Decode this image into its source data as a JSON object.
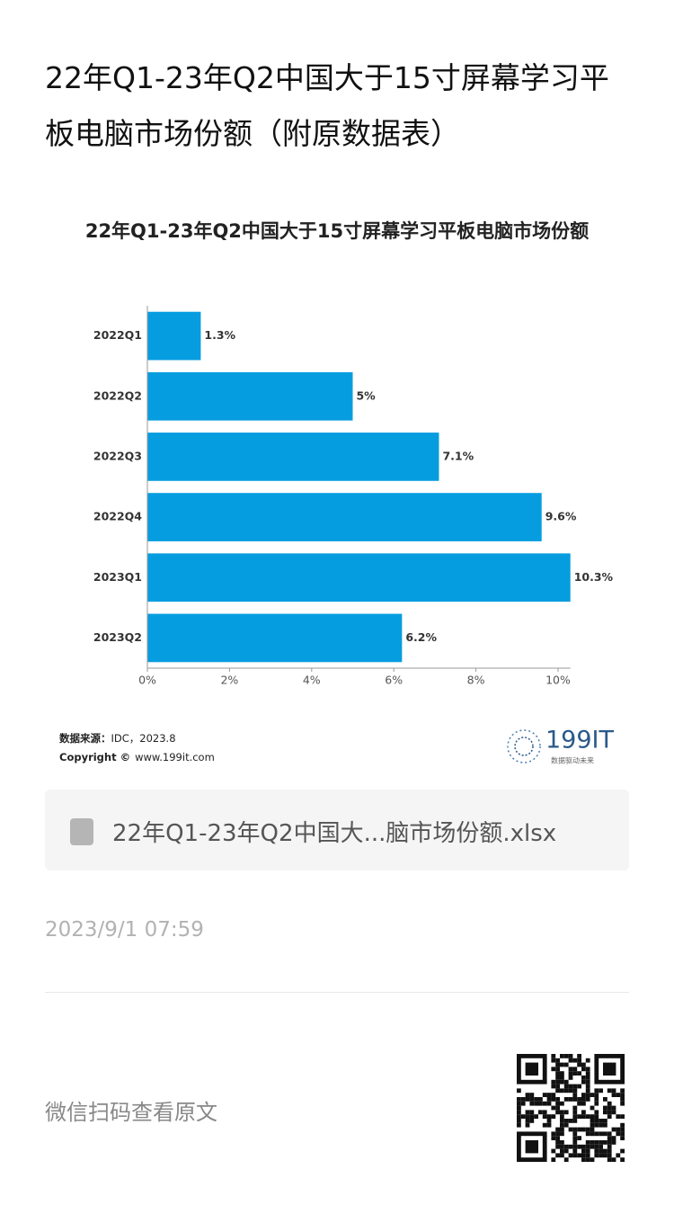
{
  "header": {
    "title": "22年Q1-23年Q2中国大于15寸屏幕学习平板电脑市场份额（附原数据表）"
  },
  "chart_data": {
    "type": "bar",
    "orientation": "horizontal",
    "title": "22年Q1-23年Q2中国大于15寸屏幕学习平板电脑市场份额",
    "categories": [
      "2022Q1",
      "2022Q2",
      "2022Q3",
      "2022Q4",
      "2023Q1",
      "2023Q2"
    ],
    "values": [
      1.3,
      5,
      7.1,
      9.6,
      10.3,
      6.2
    ],
    "value_labels": [
      "1.3%",
      "5%",
      "7.1%",
      "9.6%",
      "10.3%",
      "6.2%"
    ],
    "color": "#069de0",
    "xlim": [
      0,
      10.3
    ],
    "xticks": [
      {
        "value": 0,
        "label": "0%"
      },
      {
        "value": 2,
        "label": "2%"
      },
      {
        "value": 4,
        "label": "4%"
      },
      {
        "value": 6,
        "label": "6%"
      },
      {
        "value": 8,
        "label": "8%"
      },
      {
        "value": 10,
        "label": "10%"
      }
    ],
    "grid": false,
    "source_label": "数据来源：",
    "source": "IDC，2023.8",
    "copyright_label": "Copyright ©",
    "copyright": "www.199it.com",
    "logo": "199IT",
    "logo_slogan": "数据驱动未来"
  },
  "attachment": {
    "filename": "22年Q1-23年Q2中国大...脑市场份额.xlsx"
  },
  "date": "2023/9/1 07:59",
  "footer": {
    "qr_caption": "微信扫码查看原文"
  }
}
